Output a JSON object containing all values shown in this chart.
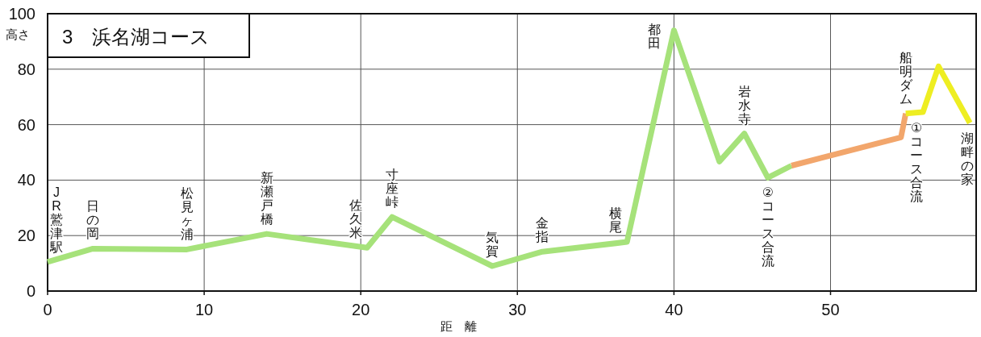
{
  "chart_data": {
    "type": "line",
    "title": "3　浜名湖コース",
    "xlabel": "距　離",
    "ylabel": "高さ",
    "xlim": [
      0,
      59.3
    ],
    "ylim": [
      0,
      100
    ],
    "xticks": [
      0,
      10,
      20,
      30,
      40,
      50
    ],
    "yticks": [
      0,
      20,
      40,
      60,
      80,
      100
    ],
    "grid": true,
    "series": [
      {
        "color": "#a6e27a",
        "x": [
          0,
          2.9,
          8.9,
          14.0,
          20.4,
          22.0,
          28.4,
          31.6,
          37.0,
          40.0,
          42.9,
          44.5,
          46.0,
          47.5
        ],
        "values": [
          10.5,
          15.3,
          15,
          20.6,
          15.6,
          26.7,
          9,
          14.2,
          17.7,
          94,
          46.7,
          56.8,
          40.9,
          45.2
        ]
      },
      {
        "color": "#f2a66c",
        "x": [
          47.5,
          54.5,
          54.8
        ],
        "values": [
          45.2,
          55.4,
          64
        ]
      },
      {
        "color": "#eeee22",
        "x": [
          54.8,
          55.9,
          56.9,
          58.9
        ],
        "values": [
          64,
          64.5,
          81,
          60.6
        ]
      }
    ],
    "annotations": [
      {
        "text": "JR鷲津駅",
        "x": 0,
        "y": 10.5
      },
      {
        "text": "日の岡",
        "x": 2.9,
        "y": 15.3
      },
      {
        "text": "松見ヶ浦",
        "x": 8.9,
        "y": 15
      },
      {
        "text": "新瀬戸橋",
        "x": 14.0,
        "y": 20.6
      },
      {
        "text": "佐久米",
        "x": 20.4,
        "y": 15.6
      },
      {
        "text": "寸座峠",
        "x": 22.0,
        "y": 26.7
      },
      {
        "text": "気賀",
        "x": 28.4,
        "y": 9
      },
      {
        "text": "金指",
        "x": 31.6,
        "y": 14.2
      },
      {
        "text": "横尾",
        "x": 37.0,
        "y": 17.7
      },
      {
        "text": "都田",
        "x": 40.0,
        "y": 94
      },
      {
        "text": "岩水寺",
        "x": 44.5,
        "y": 56.8
      },
      {
        "text": "②コース合流",
        "x": 46.0,
        "y": 40.9
      },
      {
        "text": "船明ダム",
        "x": 54.8,
        "y": 64
      },
      {
        "text": "①コース合流",
        "x": 55.5,
        "y": 64.3
      },
      {
        "text": "湖畔の家",
        "x": 58.9,
        "y": 60.6
      }
    ]
  }
}
